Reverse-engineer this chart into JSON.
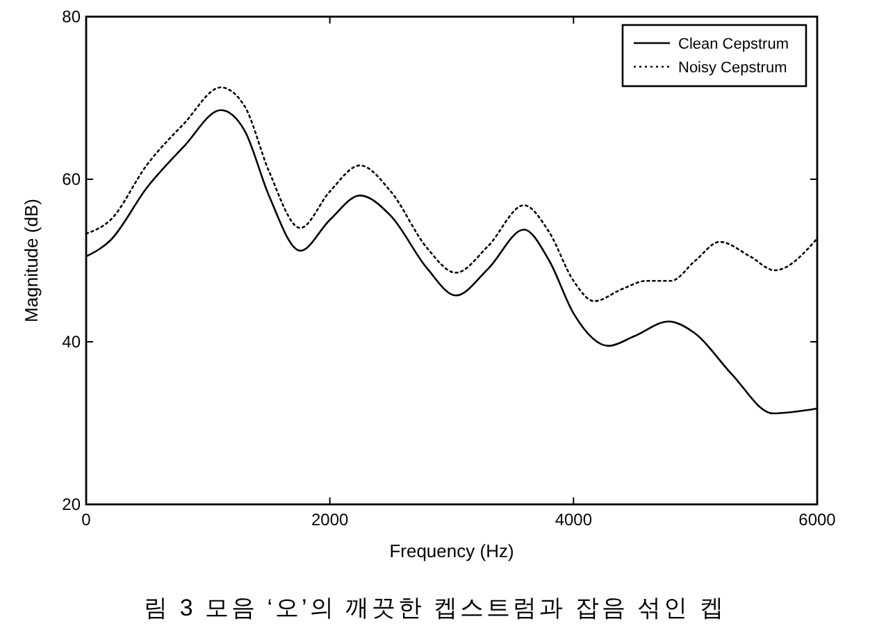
{
  "chart_data": {
    "type": "line",
    "xlabel": "Frequency (Hz)",
    "ylabel": "Magnitude (dB)",
    "xlim": [
      0,
      6000
    ],
    "ylim": [
      20,
      80
    ],
    "xticks": [
      0,
      2000,
      4000,
      6000
    ],
    "yticks": [
      20,
      40,
      60,
      80
    ],
    "grid": false,
    "legend": "top right",
    "annotations": [
      "림 3  모음 ‘오’의 깨끗한 켑스트럼과 잡음 섞인 켑"
    ],
    "series": [
      {
        "name": "Clean Cepstrum",
        "color": "#000000",
        "line_style": "solid",
        "x": [
          0,
          200,
          500,
          800,
          1106,
          1300,
          1500,
          1757,
          2000,
          2247,
          2500,
          2800,
          3034,
          3300,
          3593,
          3800,
          4000,
          4289,
          4500,
          4780,
          5000,
          5300,
          5635,
          6000
        ],
        "values": [
          50.5,
          52.5,
          59,
          64,
          68.5,
          66,
          58,
          51.2,
          55,
          58,
          55.5,
          49,
          45.7,
          49,
          53.8,
          50,
          43.5,
          39.5,
          40.7,
          42.5,
          41,
          36,
          31.2,
          31.8
        ]
      },
      {
        "name": "Noisy Cepstrum",
        "color": "#000000",
        "line_style": "dotted",
        "x": [
          0,
          200,
          500,
          800,
          1106,
          1300,
          1500,
          1757,
          2000,
          2247,
          2500,
          2800,
          3034,
          3300,
          3593,
          3800,
          4000,
          4170,
          4400,
          4600,
          4800,
          5000,
          5200,
          5450,
          5650,
          6000
        ],
        "values": [
          53.3,
          55,
          61.8,
          66.8,
          71.3,
          69,
          61,
          54,
          58.5,
          61.7,
          58.5,
          51.5,
          48.5,
          51.8,
          56.8,
          53.5,
          47.5,
          45,
          46.5,
          47.5,
          47.5,
          50,
          52.3,
          50.5,
          48.8,
          52.7
        ]
      }
    ]
  }
}
